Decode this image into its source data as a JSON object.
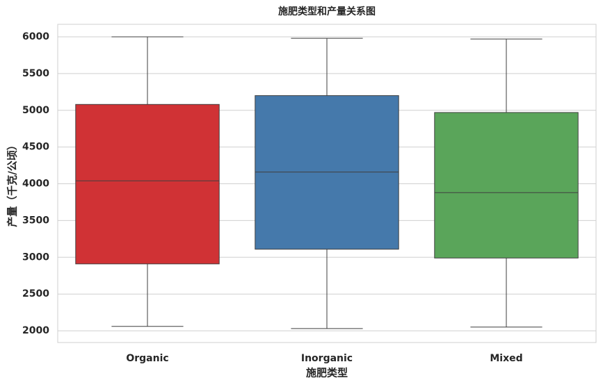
{
  "chart_data": {
    "type": "box",
    "title": "施肥类型和产量关系图",
    "x_label": "施肥类型",
    "y_label": "产量（千克/公顷）",
    "categories": [
      "Organic",
      "Inorganic",
      "Mixed"
    ],
    "colors": [
      "#d03235",
      "#4579ab",
      "#5aa55a"
    ],
    "boxes": [
      {
        "low": 2060,
        "q1": 2910,
        "median": 4040,
        "q3": 5080,
        "high": 6000
      },
      {
        "low": 2030,
        "q1": 3110,
        "median": 4160,
        "q3": 5200,
        "high": 5980
      },
      {
        "low": 2050,
        "q1": 2990,
        "median": 3880,
        "q3": 4970,
        "high": 5970
      }
    ],
    "ylim": [
      1840,
      6170
    ],
    "yticks": [
      2000,
      2500,
      3000,
      3500,
      4000,
      4500,
      5000,
      5500,
      6000
    ],
    "grid": true
  }
}
